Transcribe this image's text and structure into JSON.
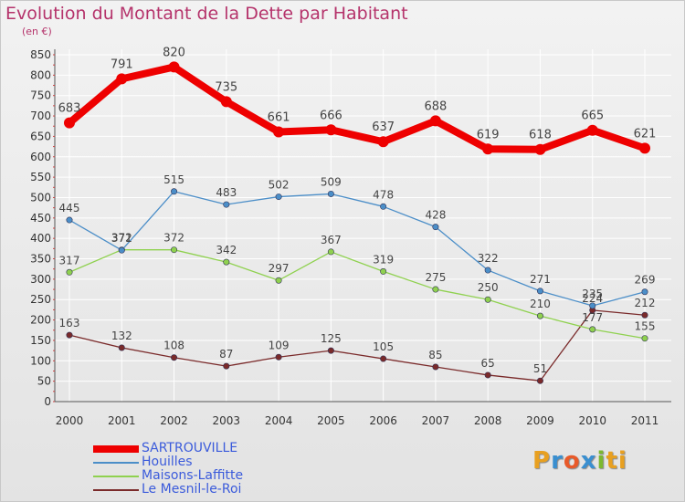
{
  "title": "Evolution du Montant de la Dette par Habitant",
  "subtitle": "(en €)",
  "brand": {
    "letters": [
      "P",
      "r",
      "o",
      "x",
      "i",
      "t",
      "i"
    ],
    "colors": [
      "#e8a020",
      "#3a8fd0",
      "#e85a2a",
      "#3a8fd0",
      "#7cb82f",
      "#e8a020",
      "#e8a020"
    ]
  },
  "legend_colors": {
    "text": "#3b5bdb"
  },
  "chart_data": {
    "type": "line",
    "x": [
      "2000",
      "2001",
      "2002",
      "2003",
      "2004",
      "2005",
      "2006",
      "2007",
      "2008",
      "2009",
      "2010",
      "2011"
    ],
    "ylim": [
      0,
      850
    ],
    "yticks": [
      0,
      50,
      100,
      150,
      200,
      250,
      300,
      350,
      400,
      450,
      500,
      550,
      600,
      650,
      700,
      750,
      800,
      850
    ],
    "grid": true,
    "legend_position": "bottom-left",
    "series": [
      {
        "name": "SARTROUVILLE",
        "color": "#ee0000",
        "values": [
          683,
          791,
          820,
          735,
          661,
          666,
          637,
          688,
          619,
          618,
          665,
          621
        ]
      },
      {
        "name": "Houilles",
        "color": "#4b8ec8",
        "values": [
          445,
          371,
          515,
          483,
          502,
          509,
          478,
          428,
          322,
          271,
          235,
          269
        ]
      },
      {
        "name": "Maisons-Laffitte",
        "color": "#8fd14f",
        "values": [
          317,
          372,
          372,
          342,
          297,
          367,
          319,
          275,
          250,
          210,
          177,
          155
        ]
      },
      {
        "name": "Le Mesnil-le-Roi",
        "color": "#7a2a2a",
        "values": [
          163,
          132,
          108,
          87,
          109,
          125,
          105,
          85,
          65,
          51,
          224,
          212
        ]
      }
    ]
  }
}
